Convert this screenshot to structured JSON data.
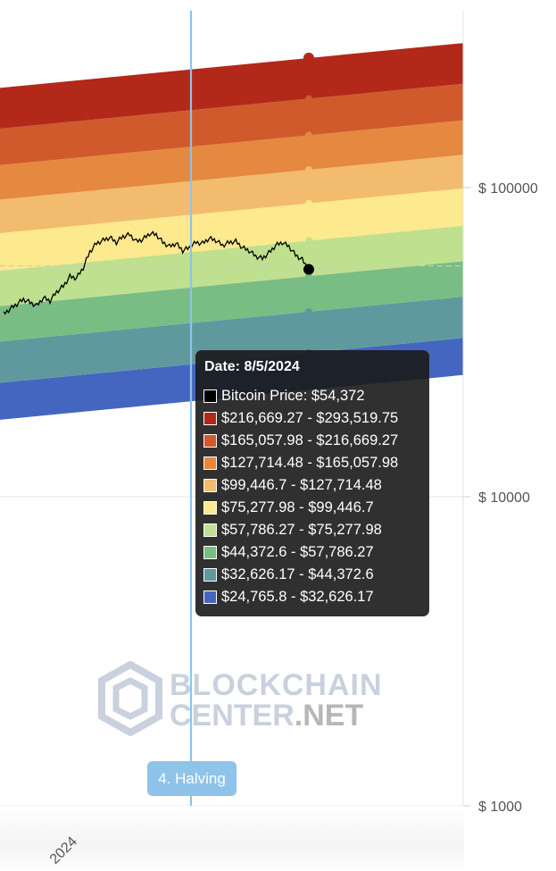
{
  "chart_data": {
    "type": "area",
    "y_scale": "log",
    "ylim": [
      1000,
      200000
    ],
    "y_ticks": [
      {
        "value": 100000,
        "label": "$ 100000"
      },
      {
        "value": 10000,
        "label": "$ 10000"
      },
      {
        "value": 1000,
        "label": "$ 1000"
      }
    ],
    "x_ticks": [
      {
        "label": "2024"
      }
    ],
    "grid": true,
    "bands": [
      {
        "color": "#4466c0",
        "low": 24765.8,
        "high": 32626.17,
        "label": "$24,765.8 - $32,626.17"
      },
      {
        "color": "#5f999e",
        "low": 32626.17,
        "high": 44372.6,
        "label": "$32,626.17 - $44,372.6"
      },
      {
        "color": "#79bd84",
        "low": 44372.6,
        "high": 57786.27,
        "label": "$44,372.6 - $57,786.27"
      },
      {
        "color": "#bfe08e",
        "low": 57786.27,
        "high": 75277.98,
        "label": "$57,786.27 - $75,277.98"
      },
      {
        "color": "#fde98e",
        "low": 75277.98,
        "high": 99446.7,
        "label": "$75,277.98 - $99,446.7"
      },
      {
        "color": "#f2bb6e",
        "low": 99446.7,
        "high": 127714.48,
        "label": "$99,446.7 - $127,714.48"
      },
      {
        "color": "#e58840",
        "low": 127714.48,
        "high": 165057.98,
        "label": "$127,714.48 - $165,057.98"
      },
      {
        "color": "#d05a2c",
        "low": 165057.98,
        "high": 216669.27,
        "label": "$165,057.98 - $216,669.27"
      },
      {
        "color": "#b2291a",
        "low": 216669.27,
        "high": 293519.75,
        "label": "$216,669.27 - $293,519.75"
      }
    ],
    "price_series": {
      "name": "Bitcoin Price",
      "color": "#000000",
      "values": [
        39000,
        40500,
        42000,
        43500,
        42500,
        41500,
        44000,
        43000,
        46000,
        48000,
        51500,
        51000,
        55000,
        62000,
        66000,
        67500,
        69000,
        66500,
        69500,
        70500,
        67000,
        68000,
        71000,
        70500,
        66500,
        64500,
        66000,
        62500,
        64000,
        66500,
        66000,
        68500,
        67500,
        65000,
        66500,
        67000,
        64000,
        62500,
        60000,
        59000,
        61500,
        65000,
        66500,
        64500,
        60500,
        58500,
        54372
      ]
    },
    "tooltip": {
      "date": "Date: 8/5/2024",
      "price_label": "Bitcoin Price: $54,372"
    },
    "event_marker": {
      "label": "4. Halving",
      "color": "#8fc3ea"
    },
    "price_reference_color": "#cccccc"
  },
  "watermark": {
    "line1": "BLOCKCHAIN",
    "line2a": "CENTER",
    "line2b": ".NET"
  }
}
